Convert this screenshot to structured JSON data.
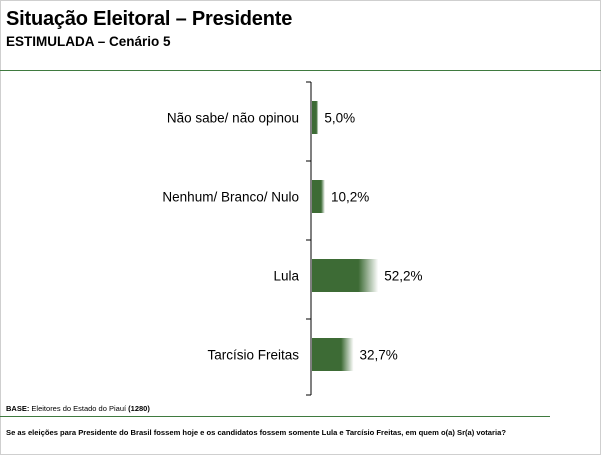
{
  "header": {
    "title": "Situação Eleitoral – Presidente",
    "subtitle": "ESTIMULADA – Cenário 5"
  },
  "colors": {
    "bar_dark": "#3d6b35",
    "bar_light": "#ffffff",
    "rule": "#3f7a3f",
    "axis": "#000000"
  },
  "chart_data": {
    "type": "bar",
    "orientation": "horizontal",
    "categories": [
      "Não sabe/ não opinou",
      "Nenhum/ Branco/ Nulo",
      "Lula",
      "Tarcísio Freitas"
    ],
    "values": [
      5.0,
      10.2,
      52.2,
      32.7
    ],
    "value_labels": [
      "5,0%",
      "10,2%",
      "52,2%",
      "32,7%"
    ],
    "unit": "%",
    "title": "",
    "xlabel": "",
    "ylabel": "",
    "xlim": [
      0,
      100
    ],
    "grid": false,
    "legend": "none"
  },
  "footer": {
    "base_label": "BASE:",
    "base_text": " Eleitores do Estado do Piauí ",
    "base_count": "(1280)",
    "question": "Se as eleições para Presidente do Brasil fossem hoje e os candidatos fossem somente Lula e Tarcísio Freitas, em quem o(a) Sr(a) votaria?"
  }
}
